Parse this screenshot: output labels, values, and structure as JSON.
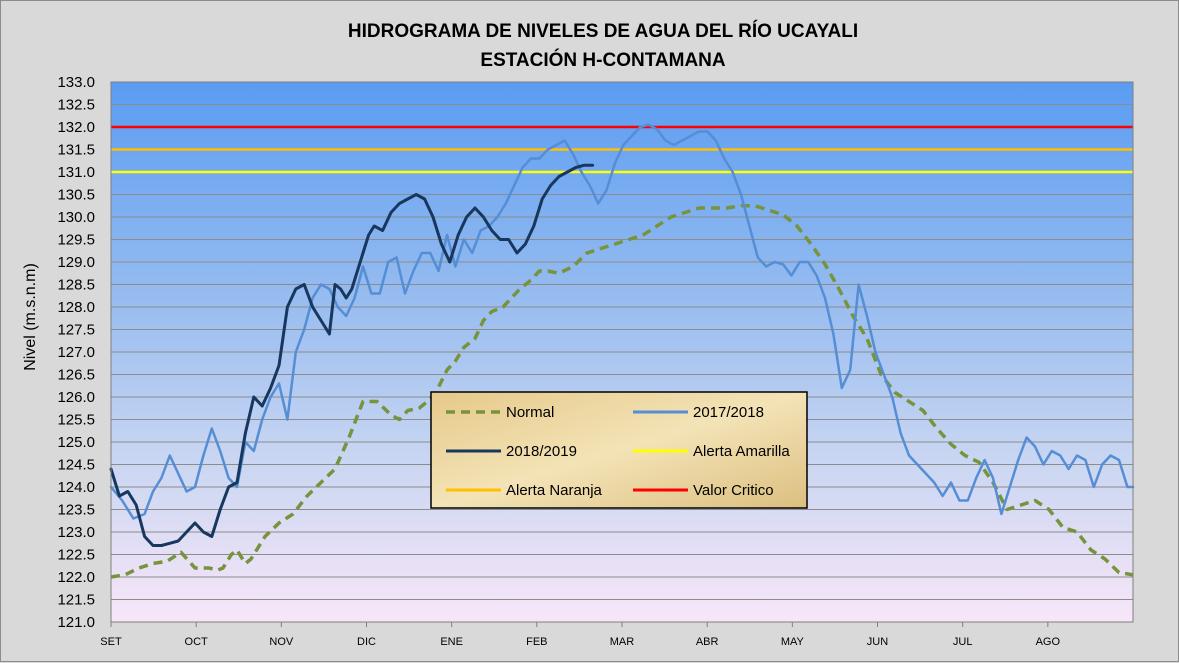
{
  "chart_data": {
    "type": "line",
    "title_line1": "HIDROGRAMA DE NIVELES DE AGUA DEL RÍO UCAYALI",
    "title_line2": "ESTACIÓN  H-CONTAMANA",
    "ylabel": "Nivel (m.s.n.m)",
    "ylim": [
      121.0,
      133.0
    ],
    "yticks": [
      "121.0",
      "121.5",
      "122.0",
      "122.5",
      "123.0",
      "123.5",
      "124.0",
      "124.5",
      "125.0",
      "125.5",
      "126.0",
      "126.5",
      "127.0",
      "127.5",
      "128.0",
      "128.5",
      "129.0",
      "129.5",
      "130.0",
      "130.5",
      "131.0",
      "131.5",
      "132.0",
      "132.5",
      "133.0"
    ],
    "months": [
      "SET",
      "OCT",
      "NOV",
      "DIC",
      "ENE",
      "FEB",
      "MAR",
      "ABR",
      "MAY",
      "JUN",
      "JUL",
      "AGO"
    ],
    "x_unit": "day of hydrological year (starting 1 September)",
    "xlim": [
      0,
      365
    ],
    "grid": true,
    "legend_position": "center",
    "legend": [
      {
        "name": "Normal",
        "key": "normal"
      },
      {
        "name": "2017/2018",
        "key": "y2017"
      },
      {
        "name": "2018/2019",
        "key": "y2018"
      },
      {
        "name": "Alerta Amarilla",
        "key": "amarilla"
      },
      {
        "name": "Alerta Naranja",
        "key": "naranja"
      },
      {
        "name": "Valor Critico",
        "key": "critico"
      }
    ],
    "thresholds": [
      {
        "key": "amarilla",
        "name": "Alerta Amarilla",
        "value": 131.0,
        "color": "#ffff00"
      },
      {
        "key": "naranja",
        "name": "Alerta Naranja",
        "value": 131.5,
        "color": "#ffc000"
      },
      {
        "key": "critico",
        "name": "Valor Critico",
        "value": 132.0,
        "color": "#ff0000"
      }
    ],
    "series": [
      {
        "key": "normal",
        "name": "Normal",
        "color": "#77933c",
        "dashed": true,
        "x": [
          0,
          5,
          10,
          15,
          20,
          25,
          30,
          32,
          35,
          38,
          40,
          43,
          45,
          48,
          50,
          55,
          60,
          65,
          70,
          75,
          80,
          85,
          90,
          95,
          100,
          103,
          106,
          110,
          113,
          116,
          120,
          123,
          126,
          130,
          133,
          136,
          140,
          143,
          146,
          150,
          153,
          156,
          160,
          165,
          170,
          175,
          180,
          185,
          190,
          195,
          200,
          205,
          210,
          215,
          220,
          225,
          230,
          235,
          240,
          245,
          250,
          255,
          260,
          265,
          270,
          275,
          280,
          285,
          290,
          295,
          300,
          305,
          310,
          315,
          320,
          325,
          330,
          335,
          340,
          345,
          350,
          355,
          360,
          365
        ],
        "y": [
          122.0,
          122.05,
          122.2,
          122.3,
          122.35,
          122.55,
          122.2,
          122.2,
          122.2,
          122.15,
          122.2,
          122.5,
          122.6,
          122.3,
          122.4,
          122.9,
          123.2,
          123.4,
          123.8,
          124.1,
          124.4,
          125.1,
          125.9,
          125.9,
          125.6,
          125.5,
          125.7,
          125.75,
          125.9,
          126.1,
          126.6,
          126.8,
          127.1,
          127.3,
          127.7,
          127.9,
          128.0,
          128.2,
          128.4,
          128.6,
          128.8,
          128.8,
          128.75,
          128.9,
          129.2,
          129.3,
          129.4,
          129.5,
          129.6,
          129.8,
          130.0,
          130.1,
          130.2,
          130.2,
          130.2,
          130.25,
          130.25,
          130.15,
          130.05,
          129.8,
          129.4,
          128.95,
          128.4,
          127.8,
          127.3,
          126.5,
          126.1,
          125.9,
          125.7,
          125.3,
          124.95,
          124.7,
          124.55,
          124.1,
          123.5,
          123.6,
          123.7,
          123.5,
          123.1,
          123.0,
          122.6,
          122.4,
          122.1,
          122.05
        ]
      },
      {
        "key": "y2017",
        "name": "2017/2018",
        "color": "#558ed5",
        "dashed": false,
        "x": [
          0,
          4,
          8,
          12,
          15,
          18,
          21,
          24,
          27,
          30,
          33,
          36,
          39,
          42,
          45,
          48,
          51,
          54,
          57,
          60,
          63,
          66,
          69,
          72,
          75,
          78,
          81,
          84,
          87,
          90,
          93,
          96,
          99,
          102,
          105,
          108,
          111,
          114,
          117,
          120,
          123,
          126,
          129,
          132,
          135,
          138,
          141,
          144,
          147,
          150,
          153,
          156,
          159,
          162,
          165,
          168,
          171,
          174,
          177,
          180,
          183,
          186,
          189,
          192,
          195,
          198,
          201,
          204,
          207,
          210,
          213,
          216,
          219,
          222,
          225,
          228,
          231,
          234,
          237,
          240,
          243,
          246,
          249,
          252,
          255,
          258,
          261,
          264,
          267,
          270,
          273,
          276,
          279,
          282,
          285,
          288,
          291,
          294,
          297,
          300,
          303,
          306,
          309,
          312,
          315,
          318,
          321,
          324,
          327,
          330,
          333,
          336,
          339,
          342,
          345,
          348,
          351,
          354,
          357,
          360,
          363,
          365
        ],
        "y": [
          124.0,
          123.7,
          123.3,
          123.4,
          123.9,
          124.2,
          124.7,
          124.3,
          123.9,
          124.0,
          124.7,
          125.3,
          124.8,
          124.2,
          124.0,
          125.0,
          124.8,
          125.5,
          126.0,
          126.3,
          125.5,
          127.0,
          127.5,
          128.2,
          128.5,
          128.4,
          128.0,
          127.8,
          128.2,
          128.9,
          128.3,
          128.3,
          129.0,
          129.1,
          128.3,
          128.8,
          129.2,
          129.2,
          128.8,
          129.6,
          128.9,
          129.5,
          129.2,
          129.7,
          129.8,
          130.0,
          130.3,
          130.7,
          131.1,
          131.3,
          131.3,
          131.5,
          131.6,
          131.7,
          131.4,
          131.0,
          130.7,
          130.3,
          130.6,
          131.2,
          131.6,
          131.8,
          132.0,
          132.05,
          131.95,
          131.7,
          131.6,
          131.7,
          131.8,
          131.9,
          131.9,
          131.7,
          131.3,
          131.0,
          130.5,
          129.8,
          129.1,
          128.9,
          129.0,
          128.95,
          128.7,
          129.0,
          129.0,
          128.7,
          128.2,
          127.4,
          126.2,
          126.6,
          128.5,
          127.8,
          127.0,
          126.5,
          126.0,
          125.2,
          124.7,
          124.5,
          124.3,
          124.1,
          123.8,
          124.1,
          123.7,
          123.7,
          124.2,
          124.6,
          124.2,
          123.4,
          124.0,
          124.6,
          125.1,
          124.9,
          124.5,
          124.8,
          124.7,
          124.4,
          124.7,
          124.6,
          124.0,
          124.5,
          124.7,
          124.6,
          124.0,
          124.0
        ]
      },
      {
        "key": "y2018",
        "name": "2018/2019",
        "color": "#17375e",
        "dashed": false,
        "x": [
          0,
          3,
          6,
          9,
          12,
          15,
          18,
          21,
          24,
          27,
          30,
          33,
          36,
          39,
          42,
          45,
          48,
          51,
          54,
          57,
          60,
          63,
          66,
          69,
          72,
          75,
          78,
          80,
          82,
          84,
          86,
          88,
          90,
          92,
          94,
          97,
          100,
          103,
          106,
          109,
          112,
          115,
          118,
          121,
          124,
          127,
          130,
          133,
          136,
          139,
          142,
          145,
          148,
          151,
          154,
          157,
          160,
          163,
          166,
          169,
          172
        ],
        "y": [
          124.4,
          123.8,
          123.9,
          123.6,
          122.9,
          122.7,
          122.7,
          122.75,
          122.8,
          123.0,
          123.2,
          123.0,
          122.9,
          123.5,
          124.0,
          124.1,
          125.2,
          126.0,
          125.8,
          126.2,
          126.7,
          128.0,
          128.4,
          128.5,
          128.0,
          127.7,
          127.4,
          128.5,
          128.4,
          128.2,
          128.4,
          128.8,
          129.2,
          129.6,
          129.8,
          129.7,
          130.1,
          130.3,
          130.4,
          130.5,
          130.4,
          130.0,
          129.4,
          129.0,
          129.6,
          130.0,
          130.2,
          130.0,
          129.7,
          129.5,
          129.5,
          129.2,
          129.4,
          129.8,
          130.4,
          130.7,
          130.9,
          131.0,
          131.1,
          131.15,
          131.15
        ]
      }
    ]
  }
}
